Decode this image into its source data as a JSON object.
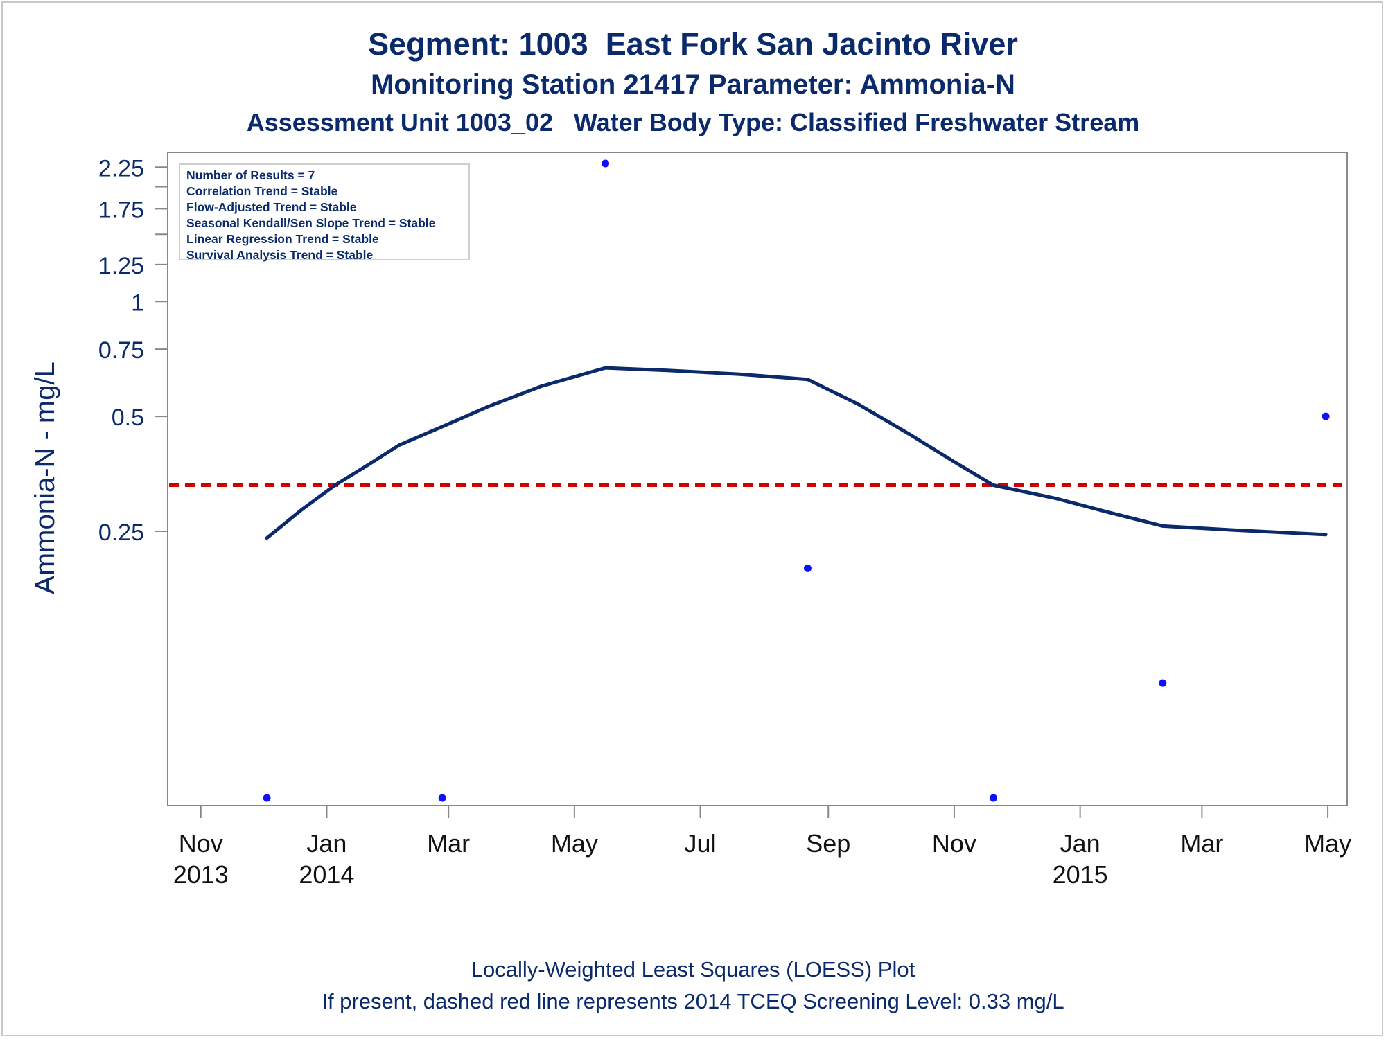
{
  "title": "Segment: 1003  East Fork San Jacinto River",
  "subtitle": "Monitoring Station 21417 Parameter: Ammonia-N",
  "subtitle2": "Assessment Unit 1003_02   Water Body Type: Classified Freshwater Stream",
  "footnotes": [
    "Locally-Weighted Least Squares (LOESS) Plot",
    "If present, dashed red line represents 2014 TCEQ Screening Level: 0.33 mg/L"
  ],
  "stats_box": [
    "Number of Results = 7",
    "Correlation Trend = Stable",
    "Flow-Adjusted Trend = Stable",
    "Seasonal Kendall/Sen Slope Trend = Stable",
    "Linear Regression Trend = Stable",
    "Survival Analysis Trend = Stable"
  ],
  "colors": {
    "text": "#0a2a6b",
    "loess_line": "#0a2a6b",
    "points": "#1010ff",
    "screening_line": "#d00000",
    "axis": "#888888"
  },
  "chart_data": {
    "type": "scatter",
    "title": "Segment: 1003  East Fork San Jacinto River",
    "xlabel": "",
    "ylabel": "Ammonia-N - mg/L",
    "yscale": "log",
    "ylim": [
      0.05,
      2.3
    ],
    "xlim": [
      "2013-10-20",
      "2015-05-05"
    ],
    "x_ticks": [
      {
        "date": "2013-11-01",
        "label": [
          "Nov",
          "2013"
        ]
      },
      {
        "date": "2014-01-01",
        "label": [
          "Jan",
          "2014"
        ]
      },
      {
        "date": "2014-03-01",
        "label": [
          "Mar"
        ]
      },
      {
        "date": "2014-05-01",
        "label": [
          "May"
        ]
      },
      {
        "date": "2014-07-01",
        "label": [
          "Jul"
        ]
      },
      {
        "date": "2014-09-01",
        "label": [
          "Sep"
        ]
      },
      {
        "date": "2014-11-01",
        "label": [
          "Nov"
        ]
      },
      {
        "date": "2015-01-01",
        "label": [
          "Jan",
          "2015"
        ]
      },
      {
        "date": "2015-03-01",
        "label": [
          "Mar"
        ]
      },
      {
        "date": "2015-05-01",
        "label": [
          "May"
        ]
      }
    ],
    "y_ticks": [
      {
        "value": 0.25,
        "label": "0.25"
      },
      {
        "value": 0.5,
        "label": "0.5"
      },
      {
        "value": 0.75,
        "label": "0.75"
      },
      {
        "value": 1,
        "label": "1"
      },
      {
        "value": 1.25,
        "label": "1.25"
      },
      {
        "value": 1.75,
        "label": "1.75"
      },
      {
        "value": 2.25,
        "label": "2.25"
      }
    ],
    "y_minor_ticks": [
      1.5,
      2.0
    ],
    "series": [
      {
        "type": "scatter",
        "points": [
          {
            "x": "2013-12-03",
            "y": 0.05
          },
          {
            "x": "2014-02-26",
            "y": 0.05
          },
          {
            "x": "2014-05-16",
            "y": 2.3
          },
          {
            "x": "2014-08-22",
            "y": 0.2
          },
          {
            "x": "2014-11-20",
            "y": 0.05
          },
          {
            "x": "2015-02-10",
            "y": 0.1
          },
          {
            "x": "2015-04-30",
            "y": 0.5
          }
        ]
      },
      {
        "type": "line",
        "points": [
          {
            "x": "2013-12-03",
            "y": 0.24
          },
          {
            "x": "2013-12-20",
            "y": 0.285
          },
          {
            "x": "2014-01-05",
            "y": 0.33
          },
          {
            "x": "2014-01-20",
            "y": 0.37
          },
          {
            "x": "2014-02-05",
            "y": 0.42
          },
          {
            "x": "2014-02-26",
            "y": 0.47
          },
          {
            "x": "2014-03-20",
            "y": 0.53
          },
          {
            "x": "2014-04-15",
            "y": 0.6
          },
          {
            "x": "2014-05-16",
            "y": 0.67
          },
          {
            "x": "2014-06-15",
            "y": 0.66
          },
          {
            "x": "2014-07-20",
            "y": 0.645
          },
          {
            "x": "2014-08-22",
            "y": 0.625
          },
          {
            "x": "2014-09-15",
            "y": 0.54
          },
          {
            "x": "2014-10-10",
            "y": 0.45
          },
          {
            "x": "2014-11-01",
            "y": 0.38
          },
          {
            "x": "2014-11-20",
            "y": 0.33
          },
          {
            "x": "2014-12-20",
            "y": 0.305
          },
          {
            "x": "2015-01-15",
            "y": 0.28
          },
          {
            "x": "2015-02-10",
            "y": 0.258
          },
          {
            "x": "2015-03-15",
            "y": 0.252
          },
          {
            "x": "2015-04-30",
            "y": 0.245
          }
        ]
      }
    ],
    "reference_line": {
      "y": 0.33,
      "style": "dashed"
    }
  }
}
